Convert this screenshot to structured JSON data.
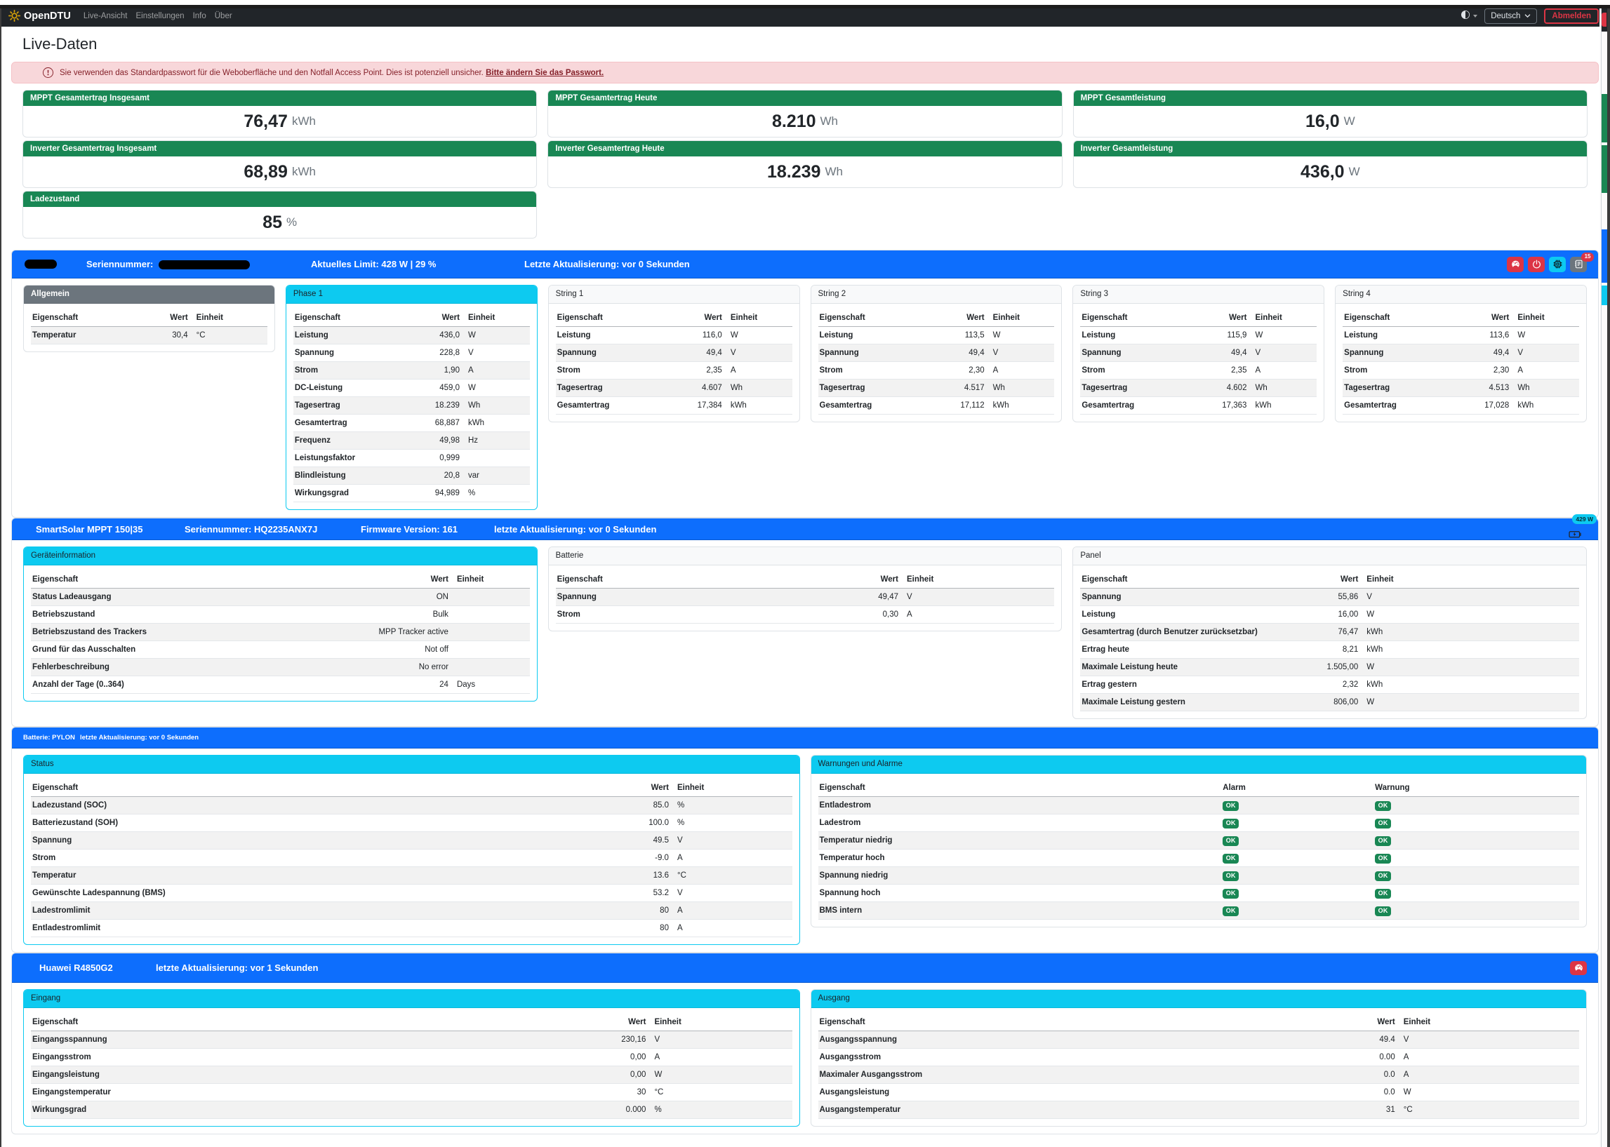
{
  "navbar": {
    "brand": "OpenDTU",
    "items": [
      {
        "label": "Live-Ansicht",
        "active": true,
        "caret": false
      },
      {
        "label": "Einstellungen",
        "active": false,
        "caret": true
      },
      {
        "label": "Info",
        "active": false,
        "caret": true
      },
      {
        "label": "Über",
        "active": false,
        "caret": false
      }
    ],
    "language": "Deutsch",
    "logout_label": "Abmelden"
  },
  "page": {
    "title": "Live-Daten"
  },
  "alert": {
    "text": "Sie verwenden das Standardpasswort für die Weboberfläche und den Notfall Access Point. Dies ist potenziell unsicher. ",
    "link_text": "Bitte ändern Sie das Passwort."
  },
  "table_headers": {
    "property": "Eigenschaft",
    "value": "Wert",
    "unit": "Einheit",
    "alarm": "Alarm",
    "warning": "Warnung"
  },
  "colors": {
    "primary": "#0d6efd",
    "success": "#198754",
    "info": "#0dcaf0",
    "danger": "#dc3545",
    "secondary": "#6c757d",
    "brand_icon": "#d9a406"
  },
  "summary_columns": [
    [
      {
        "title": "MPPT Gesamtertrag Insgesamt",
        "value": "76,47",
        "unit": "kWh"
      },
      {
        "title": "Inverter Gesamtertrag Insgesamt",
        "value": "68,89",
        "unit": "kWh"
      },
      {
        "title": "Ladezustand",
        "value": "85",
        "unit": "%"
      }
    ],
    [
      {
        "title": "MPPT Gesamtertrag Heute",
        "value": "8.210",
        "unit": "Wh"
      },
      {
        "title": "Inverter Gesamtertrag Heute",
        "value": "18.239",
        "unit": "Wh"
      }
    ],
    [
      {
        "title": "MPPT Gesamtleistung",
        "value": "16,0",
        "unit": "W"
      },
      {
        "title": "Inverter Gesamtleistung",
        "value": "436,0",
        "unit": "W"
      }
    ]
  ],
  "sections": [
    {
      "name": "inverter",
      "bar": {
        "name_redacted": true,
        "items": [
          {
            "label": "Seriennummer:",
            "redacted": true
          },
          {
            "label": "Aktuelles Limit: 428 W | 29 %"
          },
          {
            "label": "Letzte Aktualisierung: vor 0 Sekunden"
          }
        ],
        "buttons": [
          {
            "icon": "gauge",
            "variant": "danger",
            "name": "limit-settings-button"
          },
          {
            "icon": "power",
            "variant": "danger",
            "name": "power-button"
          },
          {
            "icon": "cpu",
            "variant": "info",
            "name": "device-info-button"
          },
          {
            "icon": "journal",
            "variant": "secondary",
            "name": "event-log-button",
            "badge": "15"
          }
        ]
      },
      "cards": [
        {
          "title": "Allgemein",
          "header": "dark",
          "border": "default",
          "stripe": "odd",
          "rows": [
            {
              "label": "Temperatur",
              "value": "30,4",
              "unit": "°C"
            }
          ]
        },
        {
          "title": "Phase 1",
          "header": "info",
          "border": "info",
          "stripe": "odd",
          "rows": [
            {
              "label": "Leistung",
              "value": "436,0",
              "unit": "W"
            },
            {
              "label": "Spannung",
              "value": "228,8",
              "unit": "V"
            },
            {
              "label": "Strom",
              "value": "1,90",
              "unit": "A"
            },
            {
              "label": "DC-Leistung",
              "value": "459,0",
              "unit": "W"
            },
            {
              "label": "Tagesertrag",
              "value": "18.239",
              "unit": "Wh"
            },
            {
              "label": "Gesamtertrag",
              "value": "68,887",
              "unit": "kWh"
            },
            {
              "label": "Frequenz",
              "value": "49,98",
              "unit": "Hz"
            },
            {
              "label": "Leistungsfaktor",
              "value": "0,999",
              "unit": ""
            },
            {
              "label": "Blindleistung",
              "value": "20,8",
              "unit": "var"
            },
            {
              "label": "Wirkungsgrad",
              "value": "94,989",
              "unit": "%"
            }
          ]
        },
        {
          "title": "String 1",
          "header": "light",
          "border": "default",
          "stripe": "even",
          "rows": [
            {
              "label": "Leistung",
              "value": "116,0",
              "unit": "W"
            },
            {
              "label": "Spannung",
              "value": "49,4",
              "unit": "V"
            },
            {
              "label": "Strom",
              "value": "2,35",
              "unit": "A"
            },
            {
              "label": "Tagesertrag",
              "value": "4.607",
              "unit": "Wh"
            },
            {
              "label": "Gesamtertrag",
              "value": "17,384",
              "unit": "kWh"
            }
          ]
        },
        {
          "title": "String 2",
          "header": "light",
          "border": "default",
          "stripe": "even",
          "rows": [
            {
              "label": "Leistung",
              "value": "113,5",
              "unit": "W"
            },
            {
              "label": "Spannung",
              "value": "49,4",
              "unit": "V"
            },
            {
              "label": "Strom",
              "value": "2,30",
              "unit": "A"
            },
            {
              "label": "Tagesertrag",
              "value": "4.517",
              "unit": "Wh"
            },
            {
              "label": "Gesamtertrag",
              "value": "17,112",
              "unit": "kWh"
            }
          ]
        },
        {
          "title": "String 3",
          "header": "light",
          "border": "default",
          "stripe": "even",
          "rows": [
            {
              "label": "Leistung",
              "value": "115,9",
              "unit": "W"
            },
            {
              "label": "Spannung",
              "value": "49,4",
              "unit": "V"
            },
            {
              "label": "Strom",
              "value": "2,35",
              "unit": "A"
            },
            {
              "label": "Tagesertrag",
              "value": "4.602",
              "unit": "Wh"
            },
            {
              "label": "Gesamtertrag",
              "value": "17,363",
              "unit": "kWh"
            }
          ]
        },
        {
          "title": "String 4",
          "header": "light",
          "border": "default",
          "stripe": "even",
          "rows": [
            {
              "label": "Leistung",
              "value": "113,6",
              "unit": "W"
            },
            {
              "label": "Spannung",
              "value": "49,4",
              "unit": "V"
            },
            {
              "label": "Strom",
              "value": "2,30",
              "unit": "A"
            },
            {
              "label": "Tagesertrag",
              "value": "4.513",
              "unit": "Wh"
            },
            {
              "label": "Gesamtertrag",
              "value": "17,028",
              "unit": "kWh"
            }
          ]
        }
      ]
    },
    {
      "name": "victron",
      "bar": {
        "items": [
          {
            "label": "SmartSolar MPPT 150|35"
          },
          {
            "label": "Seriennummer: HQ2235ANX7J"
          },
          {
            "label": "Firmware Version: 161"
          },
          {
            "label": "letzte Aktualisierung: vor 0 Sekunden"
          }
        ],
        "battery_badge": "429 W"
      },
      "cards": [
        {
          "title": "Geräteinformation",
          "header": "info",
          "border": "info",
          "stripe": "odd",
          "rows": [
            {
              "label": "Status Ladeausgang",
              "value": "ON",
              "unit": ""
            },
            {
              "label": "Betriebszustand",
              "value": "Bulk",
              "unit": ""
            },
            {
              "label": "Betriebszustand des Trackers",
              "value": "MPP Tracker active",
              "unit": ""
            },
            {
              "label": "Grund für das Ausschalten",
              "value": "Not off",
              "unit": ""
            },
            {
              "label": "Fehlerbeschreibung",
              "value": "No error",
              "unit": ""
            },
            {
              "label": "Anzahl der Tage (0..364)",
              "value": "24",
              "unit": "Days"
            }
          ]
        },
        {
          "title": "Batterie",
          "header": "light",
          "border": "default",
          "stripe": "odd",
          "rows": [
            {
              "label": "Spannung",
              "value": "49,47",
              "unit": "V"
            },
            {
              "label": "Strom",
              "value": "0,30",
              "unit": "A"
            }
          ]
        },
        {
          "title": "Panel",
          "header": "light",
          "border": "default",
          "stripe": "odd",
          "rows": [
            {
              "label": "Spannung",
              "value": "55,86",
              "unit": "V"
            },
            {
              "label": "Leistung",
              "value": "16,00",
              "unit": "W"
            },
            {
              "label": "Gesamtertrag (durch Benutzer zurücksetzbar)",
              "value": "76,47",
              "unit": "kWh"
            },
            {
              "label": "Ertrag heute",
              "value": "8,21",
              "unit": "kWh"
            },
            {
              "label": "Maximale Leistung heute",
              "value": "1.505,00",
              "unit": "W"
            },
            {
              "label": "Ertrag gestern",
              "value": "2,32",
              "unit": "kWh"
            },
            {
              "label": "Maximale Leistung gestern",
              "value": "806,00",
              "unit": "W"
            }
          ]
        }
      ]
    },
    {
      "name": "battery",
      "bar": {
        "items": [
          {
            "label": "Batterie: PYLON"
          },
          {
            "label": "letzte Aktualisierung: vor 0 Sekunden"
          }
        ]
      },
      "cards": [
        {
          "title": "Status",
          "header": "info",
          "border": "info",
          "stripe": "odd",
          "rows": [
            {
              "label": "Ladezustand (SOC)",
              "value": "85.0",
              "unit": "%"
            },
            {
              "label": "Batteriezustand (SOH)",
              "value": "100.0",
              "unit": "%"
            },
            {
              "label": "Spannung",
              "value": "49.5",
              "unit": "V"
            },
            {
              "label": "Strom",
              "value": "-9.0",
              "unit": "A"
            },
            {
              "label": "Temperatur",
              "value": "13.6",
              "unit": "°C"
            },
            {
              "label": "Gewünschte Ladespannung (BMS)",
              "value": "53.2",
              "unit": "V"
            },
            {
              "label": "Ladestromlimit",
              "value": "80",
              "unit": "A"
            },
            {
              "label": "Entladestromlimit",
              "value": "80",
              "unit": "A"
            }
          ]
        },
        {
          "title": "Warnungen und Alarme",
          "header": "info",
          "border": "default",
          "stripe": "odd",
          "type": "alarm",
          "rows": [
            {
              "label": "Entladestrom",
              "alarm": "OK",
              "warning": "OK"
            },
            {
              "label": "Ladestrom",
              "alarm": "OK",
              "warning": "OK"
            },
            {
              "label": "Temperatur niedrig",
              "alarm": "OK",
              "warning": "OK"
            },
            {
              "label": "Temperatur hoch",
              "alarm": "OK",
              "warning": "OK"
            },
            {
              "label": "Spannung niedrig",
              "alarm": "OK",
              "warning": "OK"
            },
            {
              "label": "Spannung hoch",
              "alarm": "OK",
              "warning": "OK"
            },
            {
              "label": "BMS intern",
              "alarm": "OK",
              "warning": "OK"
            }
          ]
        }
      ]
    },
    {
      "name": "huawei",
      "bar": {
        "items": [
          {
            "label": "Huawei R4850G2"
          },
          {
            "label": "letzte Aktualisierung: vor 1 Sekunden"
          }
        ],
        "buttons": [
          {
            "icon": "gauge",
            "variant": "danger",
            "name": "limit-settings-button",
            "small": true
          }
        ]
      },
      "cards": [
        {
          "title": "Eingang",
          "header": "info",
          "border": "info",
          "stripe": "odd",
          "rows": [
            {
              "label": "Eingangsspannung",
              "value": "230,16",
              "unit": "V"
            },
            {
              "label": "Eingangsstrom",
              "value": "0,00",
              "unit": "A"
            },
            {
              "label": "Eingangsleistung",
              "value": "0,00",
              "unit": "W"
            },
            {
              "label": "Eingangstemperatur",
              "value": "30",
              "unit": "°C"
            },
            {
              "label": "Wirkungsgrad",
              "value": "0.000",
              "unit": "%"
            }
          ]
        },
        {
          "title": "Ausgang",
          "header": "info",
          "border": "default",
          "stripe": "odd",
          "rows": [
            {
              "label": "Ausgangsspannung",
              "value": "49.4",
              "unit": "V"
            },
            {
              "label": "Ausgangsstrom",
              "value": "0.00",
              "unit": "A"
            },
            {
              "label": "Maximaler Ausgangsstrom",
              "value": "0.0",
              "unit": "A"
            },
            {
              "label": "Ausgangsleistung",
              "value": "0.0",
              "unit": "W"
            },
            {
              "label": "Ausgangstemperatur",
              "value": "31",
              "unit": "°C"
            }
          ]
        }
      ]
    }
  ]
}
